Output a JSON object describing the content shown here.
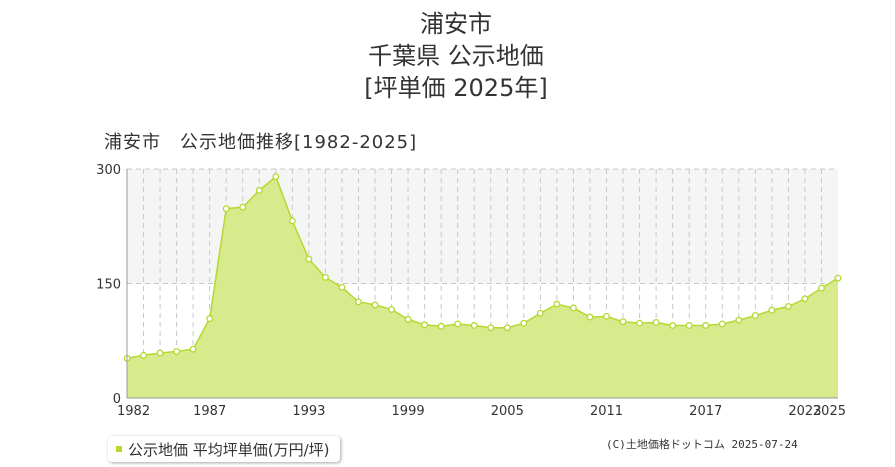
{
  "header": {
    "title_line1": "浦安市",
    "title_line2": "千葉県 公示地価",
    "title_line3": "[坪単価 2025年]"
  },
  "chart_title": "浦安市　公示地価推移[1982-2025]",
  "legend": {
    "label": "公示地価 平均坪単価(万円/坪)"
  },
  "copyright": "(C)土地価格ドットコム 2025-07-24",
  "colors": {
    "area_fill": "#d7ea8c",
    "line": "#b5d832",
    "point_fill": "#ffffff",
    "grid": "#c8c8c8",
    "plot_bg": "#ffffff",
    "plot_band": "#f5f5f5"
  },
  "chart_data": {
    "type": "area",
    "title": "浦安市　公示地価推移[1982-2025]",
    "xlabel": "",
    "ylabel": "",
    "x": [
      1982,
      1983,
      1984,
      1985,
      1986,
      1987,
      1988,
      1989,
      1990,
      1991,
      1992,
      1993,
      1994,
      1995,
      1996,
      1997,
      1998,
      1999,
      2000,
      2001,
      2002,
      2003,
      2004,
      2005,
      2006,
      2007,
      2008,
      2009,
      2010,
      2011,
      2012,
      2013,
      2014,
      2015,
      2016,
      2017,
      2018,
      2019,
      2020,
      2021,
      2022,
      2023,
      2024,
      2025
    ],
    "series": [
      {
        "name": "公示地価 平均坪単価(万円/坪)",
        "values": [
          52,
          56,
          59,
          61,
          64,
          104,
          248,
          250,
          272,
          290,
          232,
          182,
          158,
          145,
          126,
          122,
          116,
          103,
          96,
          94,
          97,
          95,
          92,
          92,
          98,
          111,
          123,
          118,
          106,
          107,
          100,
          98,
          99,
          95,
          95,
          95,
          97,
          102,
          108,
          115,
          120,
          130,
          144,
          157
        ]
      }
    ],
    "ylim": [
      0,
      300
    ],
    "yticks": [
      0,
      150,
      300
    ],
    "xtick_labels": [
      "1982",
      "1987",
      "1993",
      "1999",
      "2005",
      "2011",
      "2017",
      "2023",
      "2025"
    ],
    "grid": true,
    "legend_position": "bottom-left"
  }
}
